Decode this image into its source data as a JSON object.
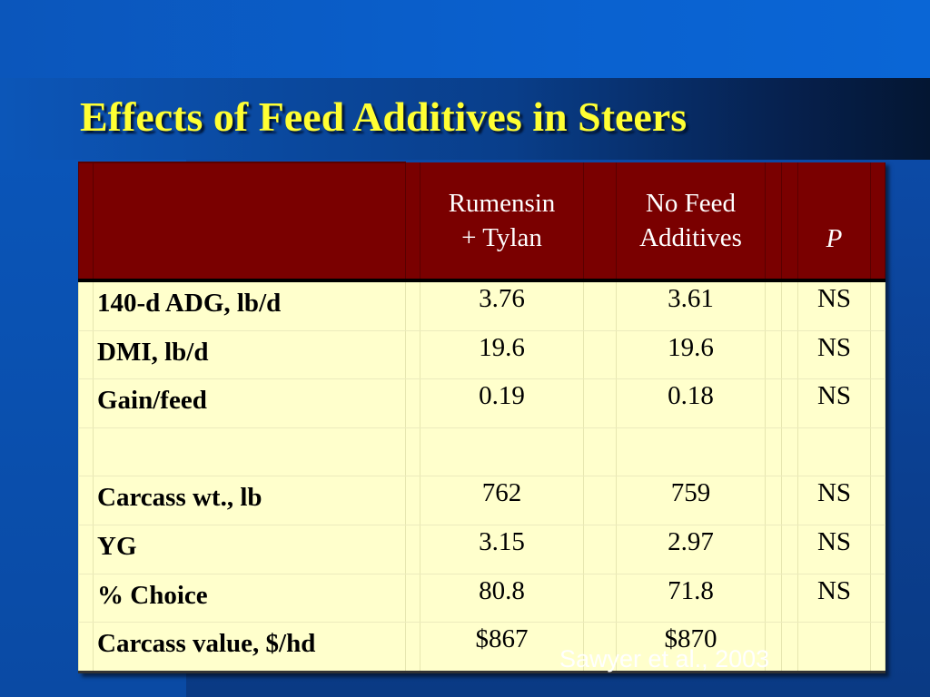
{
  "slide": {
    "title": "Effects of Feed Additives in Steers",
    "citation": "Sawyer et al., 2003",
    "colors": {
      "title": "#ffff33",
      "header_bg": "#7a0000",
      "body_bg": "#ffffcc",
      "background": "#0b4aa6"
    }
  },
  "table": {
    "headers": {
      "col1_line1": "Rumensin",
      "col1_line2": "+ Tylan",
      "col2_line1": "No Feed",
      "col2_line2": "Additives",
      "p": "P"
    },
    "rows": [
      {
        "label": "140-d ADG, lb/d",
        "rumensin_tylan": "3.76",
        "no_feed_additives": "3.61",
        "p": "NS"
      },
      {
        "label": "DMI, lb/d",
        "rumensin_tylan": "19.6",
        "no_feed_additives": "19.6",
        "p": "NS"
      },
      {
        "label": "Gain/feed",
        "rumensin_tylan": "0.19",
        "no_feed_additives": "0.18",
        "p": "NS"
      },
      {
        "label": "",
        "rumensin_tylan": "",
        "no_feed_additives": "",
        "p": ""
      },
      {
        "label": "Carcass wt., lb",
        "rumensin_tylan": "762",
        "no_feed_additives": "759",
        "p": "NS"
      },
      {
        "label": "YG",
        "rumensin_tylan": "3.15",
        "no_feed_additives": "2.97",
        "p": "NS"
      },
      {
        "label": "% Choice",
        "rumensin_tylan": "80.8",
        "no_feed_additives": "71.8",
        "p": "NS"
      },
      {
        "label": "Carcass value, $/hd",
        "rumensin_tylan": "$867",
        "no_feed_additives": "$870",
        "p": ""
      }
    ]
  }
}
